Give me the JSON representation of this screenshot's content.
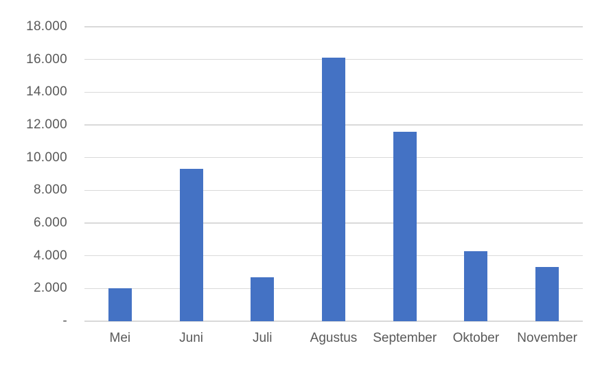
{
  "chart_data": {
    "type": "bar",
    "title": "",
    "xlabel": "",
    "ylabel": "",
    "categories": [
      "Mei",
      "Juni",
      "Juli",
      "Agustus",
      "September",
      "Oktober",
      "November"
    ],
    "values": [
      2000,
      9300,
      2700,
      16100,
      11600,
      4300,
      3300
    ],
    "ylim": [
      0,
      18000
    ],
    "ytick_interval": 2000,
    "yticks": [
      {
        "value": 18000,
        "label": "18.000"
      },
      {
        "value": 16000,
        "label": "16.000"
      },
      {
        "value": 14000,
        "label": "14.000"
      },
      {
        "value": 12000,
        "label": "12.000"
      },
      {
        "value": 10000,
        "label": "10.000"
      },
      {
        "value": 8000,
        "label": "8.000"
      },
      {
        "value": 6000,
        "label": "6.000"
      },
      {
        "value": 4000,
        "label": "4.000"
      },
      {
        "value": 2000,
        "label": "2.000"
      },
      {
        "value": 0,
        "label": "-"
      }
    ],
    "grid": true,
    "legend": false,
    "legend_position": "none",
    "colors": {
      "bar": "#4472C4",
      "gridline": "#D9D9D9",
      "axis_line": "#D9D9D9",
      "tick_text": "#595959",
      "background": "#FFFFFF"
    }
  }
}
